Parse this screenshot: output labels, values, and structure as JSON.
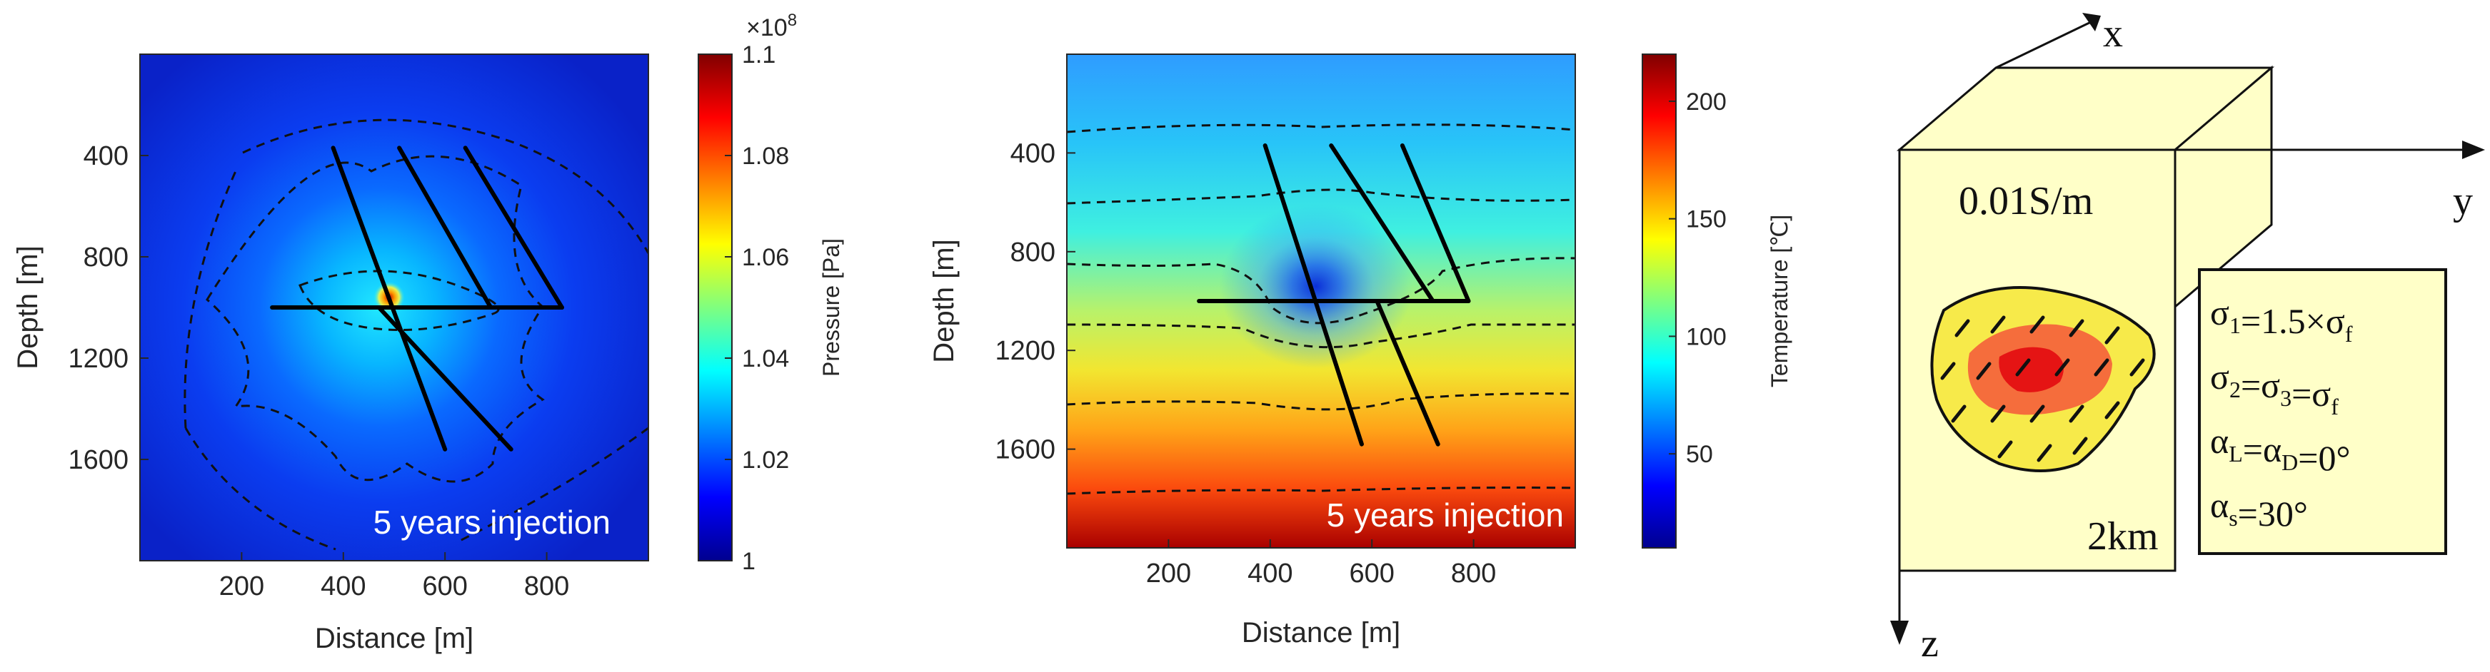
{
  "chart_data": [
    {
      "type": "heatmap",
      "title": "",
      "overlay_text": "5 years injection",
      "xlabel": "Distance [m]",
      "ylabel": "Depth [m]",
      "xlim": [
        0,
        1000
      ],
      "ylim": [
        0,
        2000
      ],
      "xticks": [
        200,
        400,
        600,
        800
      ],
      "yticks": [
        400,
        800,
        1200,
        1600
      ],
      "colorbar": {
        "label": "Pressure [Pa]",
        "multiplier": "×10",
        "exponent": "8",
        "range": [
          1.0,
          1.1
        ],
        "ticks": [
          "1",
          "1.02",
          "1.04",
          "1.06",
          "1.08",
          "1.1"
        ],
        "tick_values": [
          1.0,
          1.02,
          1.04,
          1.06,
          1.08,
          1.1
        ]
      },
      "fractures": [
        {
          "x": [
            260,
            830
          ],
          "y": [
            1000,
            1000
          ]
        },
        {
          "x": [
            380,
            600
          ],
          "y": [
            370,
            1560
          ]
        },
        {
          "x": [
            510,
            690
          ],
          "y": [
            370,
            1000
          ]
        },
        {
          "x": [
            640,
            830
          ],
          "y": [
            370,
            1000
          ]
        },
        {
          "x": [
            470,
            730
          ],
          "y": [
            1000,
            1560
          ]
        }
      ],
      "injection_point": {
        "x": 490,
        "y": 960
      }
    },
    {
      "type": "heatmap",
      "title": "",
      "overlay_text": "5 years injection",
      "xlabel": "Distance [m]",
      "ylabel": "Depth [m]",
      "xlim": [
        0,
        1000
      ],
      "ylim": [
        0,
        2000
      ],
      "xticks": [
        200,
        400,
        600,
        800
      ],
      "yticks": [
        400,
        800,
        1200,
        1600
      ],
      "colorbar": {
        "label": "Temperature [℃]",
        "range": [
          10,
          220
        ],
        "ticks": [
          "50",
          "100",
          "150",
          "200"
        ],
        "tick_values": [
          50,
          100,
          150,
          200
        ]
      },
      "fractures": [
        {
          "x": [
            260,
            790
          ],
          "y": [
            1000,
            1000
          ]
        },
        {
          "x": [
            390,
            580
          ],
          "y": [
            370,
            1580
          ]
        },
        {
          "x": [
            520,
            720
          ],
          "y": [
            370,
            1000
          ]
        },
        {
          "x": [
            660,
            790
          ],
          "y": [
            370,
            1000
          ]
        },
        {
          "x": [
            610,
            730
          ],
          "y": [
            1000,
            1580
          ]
        }
      ],
      "injection_point": {
        "x": 490,
        "y": 940
      }
    }
  ],
  "schematic": {
    "axis_x": "x",
    "axis_y": "y",
    "axis_z": "z",
    "conductivity": "0.01S/m",
    "depth_label": "2km",
    "params": [
      {
        "base": "σ",
        "sub": "1",
        "rest": "=1.5×σ",
        "sub2": "f",
        "tail": ""
      },
      {
        "base": "σ",
        "sub": "2",
        "rest": "=σ",
        "sub2": "3",
        "tail": "=σ",
        "sub3": "f"
      },
      {
        "base": "α",
        "sub": "L",
        "rest": "=α",
        "sub2": "D",
        "tail": "=0°"
      },
      {
        "base": "α",
        "sub": "s",
        "rest": "=30°",
        "sub2": "",
        "tail": ""
      }
    ],
    "colors": {
      "block_fill": "#ffffc8",
      "anomaly_outer": "#f7ea4a",
      "anomaly_mid": "#f56d3c",
      "anomaly_core": "#e51414"
    }
  }
}
